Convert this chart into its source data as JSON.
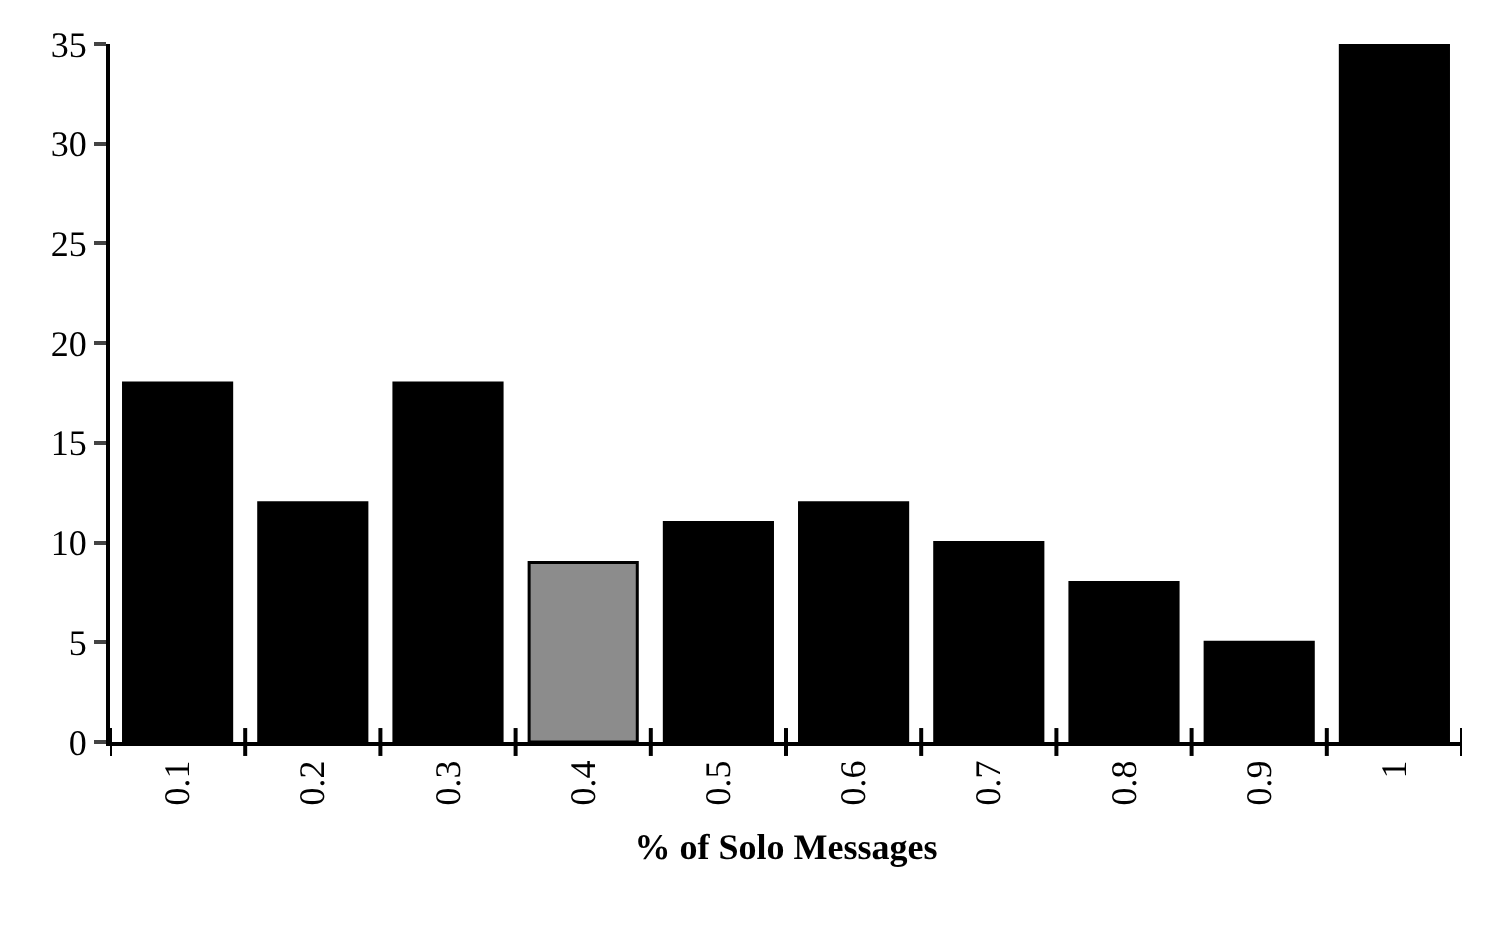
{
  "chart_data": {
    "type": "bar",
    "xlabel": "% of Solo Messages",
    "categories": [
      "0.1",
      "0.2",
      "0.3",
      "0.4",
      "0.5",
      "0.6",
      "0.7",
      "0.8",
      "0.9",
      "1"
    ],
    "values": [
      18,
      12,
      18,
      9,
      11,
      12,
      10,
      8,
      5,
      35
    ],
    "colors": [
      "#000000",
      "#000000",
      "#000000",
      "#8c8c8c",
      "#000000",
      "#000000",
      "#000000",
      "#000000",
      "#000000",
      "#000000"
    ],
    "ylim": [
      0,
      35
    ],
    "yticks": [
      0,
      5,
      10,
      15,
      20,
      25,
      30,
      35
    ]
  }
}
